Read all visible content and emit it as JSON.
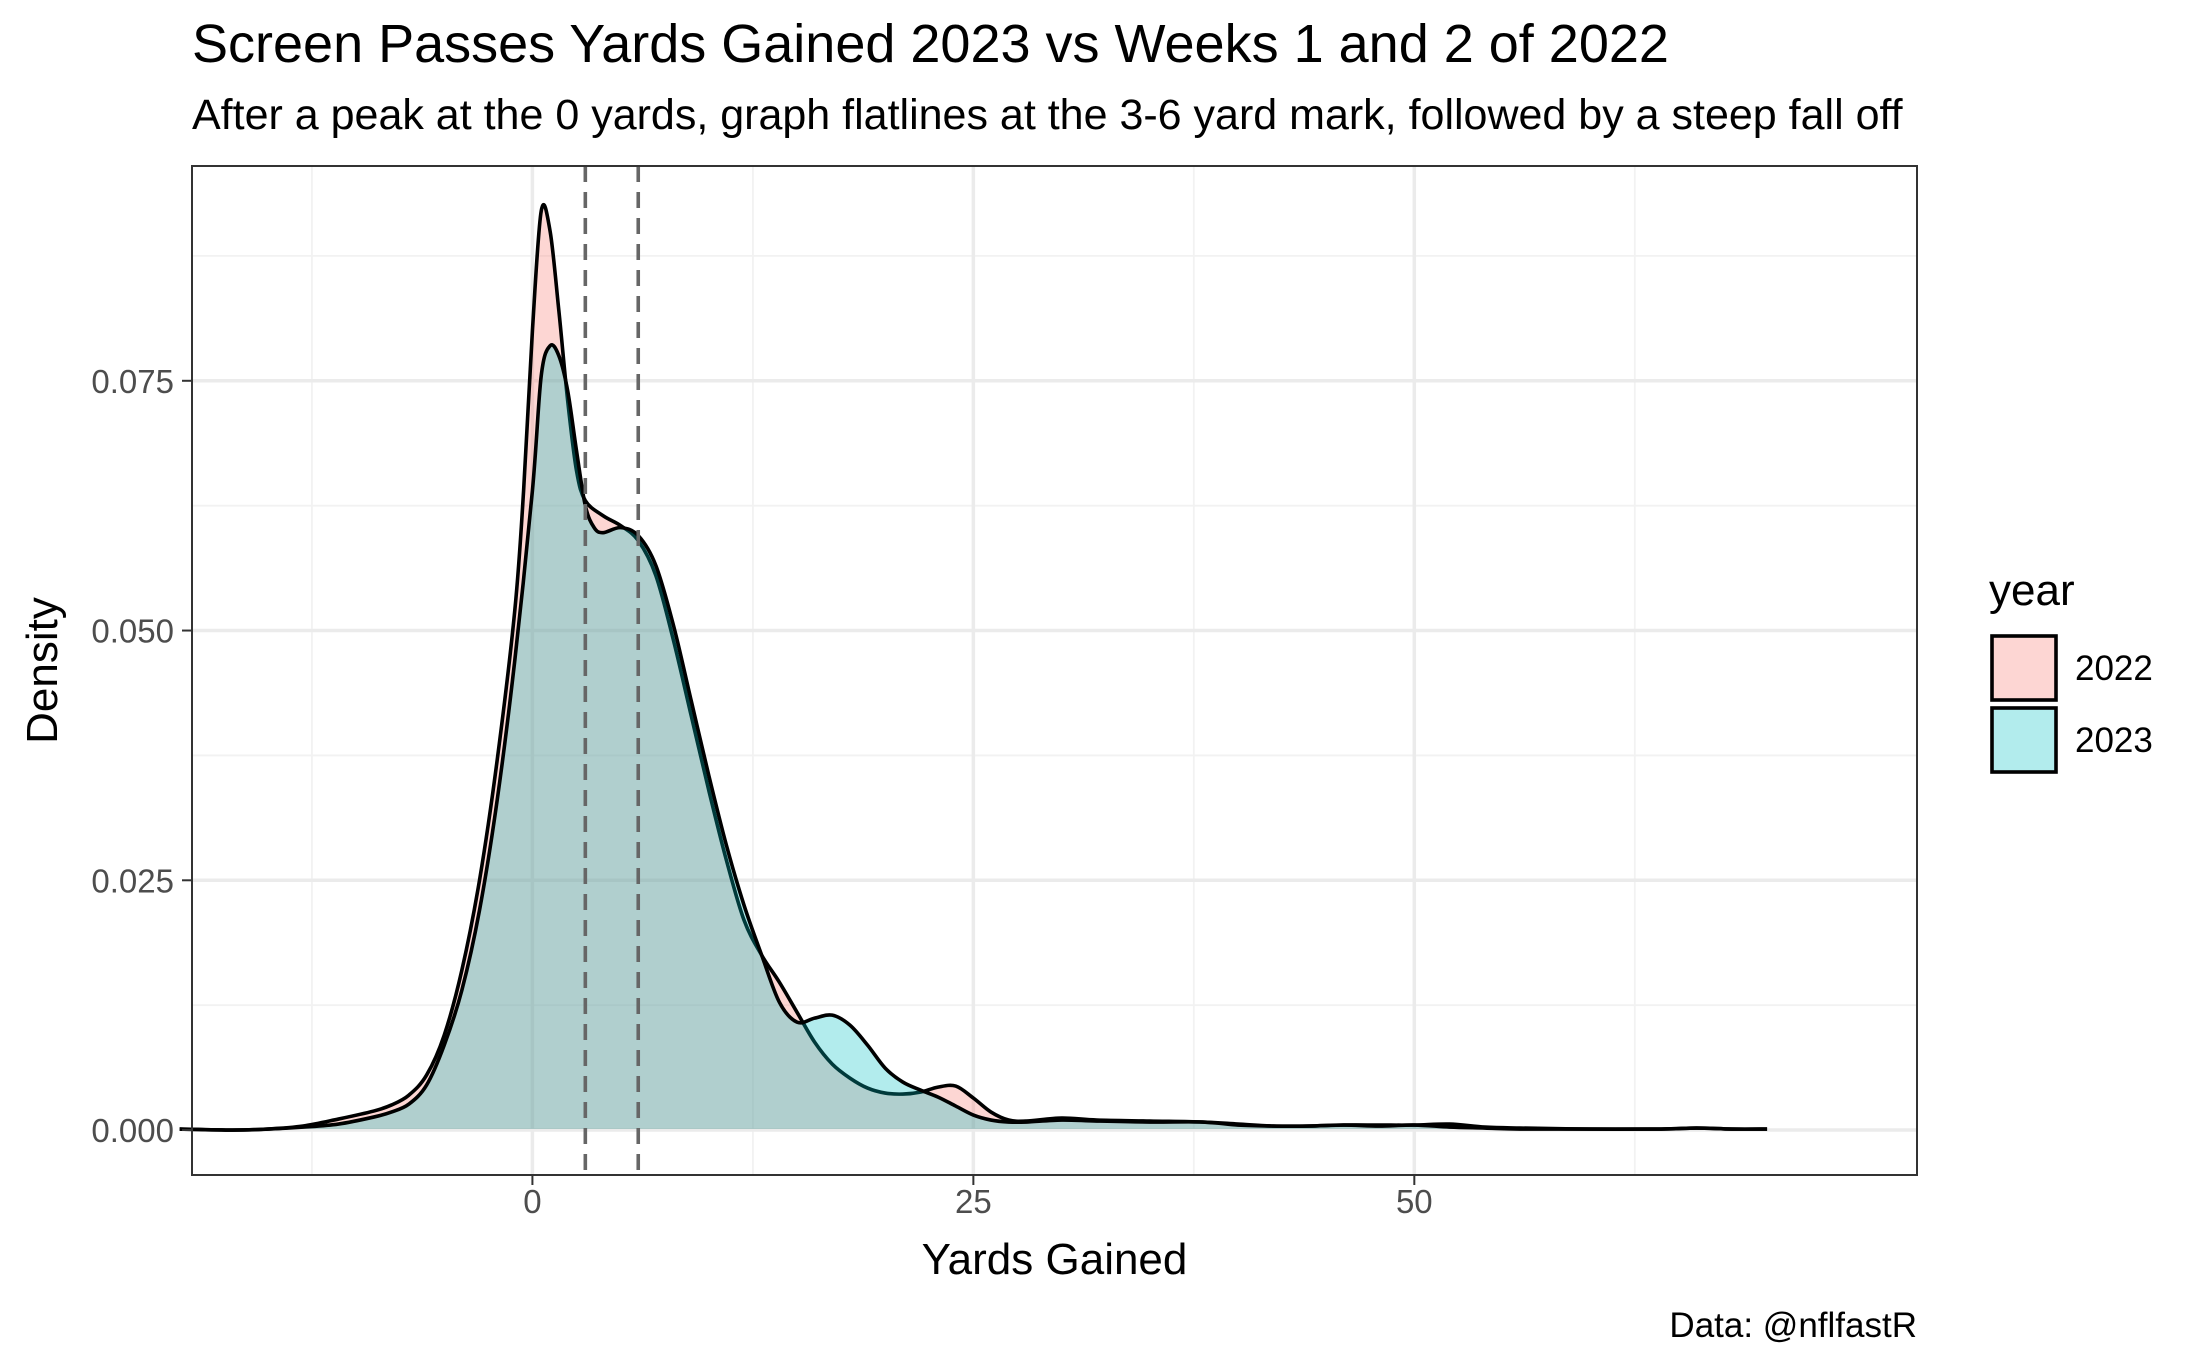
{
  "chart_data": {
    "type": "area",
    "title": "Screen Passes Yards Gained 2023 vs Weeks 1 and 2 of 2022",
    "subtitle": "After a peak at the 0 yards, graph flatlines at the 3-6 yard mark, followed by a steep fall off",
    "xlabel": "Yards Gained",
    "ylabel": "Density",
    "caption": "Data: @nflfastR",
    "xlim": [
      -19.3,
      78.5
    ],
    "ylim": [
      -0.0045,
      0.0965
    ],
    "x_ticks": [
      0,
      25,
      50
    ],
    "x_tick_labels": [
      "0",
      "25",
      "50"
    ],
    "x_minor": [
      -12.5,
      12.5,
      37.5,
      62.5
    ],
    "y_ticks": [
      0.0,
      0.025,
      0.05,
      0.075
    ],
    "y_tick_labels": [
      "0.000",
      "0.025",
      "0.050",
      "0.075"
    ],
    "y_minor": [
      0.0125,
      0.0375,
      0.0625,
      0.0875
    ],
    "grid": true,
    "legend": {
      "title": "year",
      "position": "right"
    },
    "reference_lines": {
      "type": "vertical dashed",
      "x": [
        3,
        6
      ]
    },
    "series": [
      {
        "name": "2022",
        "color": "#F8766D",
        "alpha": 0.3,
        "x": [
          -20,
          -17,
          -15,
          -13,
          -11,
          -9,
          -8,
          -7,
          -6,
          -5,
          -4,
          -3,
          -2,
          -1,
          -0.5,
          0,
          0.5,
          1,
          1.5,
          2,
          2.5,
          3,
          4,
          5,
          6,
          7,
          8,
          9,
          10,
          11,
          12,
          13,
          14,
          15,
          16,
          17,
          18,
          19,
          20,
          21,
          22,
          23,
          24,
          25,
          26,
          27,
          28,
          30,
          32,
          35,
          38,
          40,
          42,
          44,
          46,
          48,
          50,
          52,
          54,
          56,
          60,
          64,
          66,
          68,
          70
        ],
        "y": [
          0.0001,
          0.0,
          0.0001,
          0.0004,
          0.0011,
          0.0019,
          0.0025,
          0.0035,
          0.0055,
          0.0095,
          0.016,
          0.025,
          0.037,
          0.052,
          0.064,
          0.08,
          0.092,
          0.09,
          0.082,
          0.073,
          0.066,
          0.063,
          0.0615,
          0.0605,
          0.059,
          0.0555,
          0.049,
          0.0415,
          0.034,
          0.027,
          0.021,
          0.0175,
          0.0148,
          0.0118,
          0.0088,
          0.0066,
          0.0052,
          0.0042,
          0.0037,
          0.0036,
          0.0038,
          0.0043,
          0.0044,
          0.0032,
          0.0018,
          0.001,
          0.0009,
          0.0012,
          0.001,
          0.0009,
          0.0008,
          0.0006,
          0.0004,
          0.0004,
          0.0005,
          0.0005,
          0.0005,
          0.0006,
          0.0003,
          0.0002,
          0.0001,
          0.0001,
          0.0002,
          0.0001,
          0.0001
        ]
      },
      {
        "name": "2023",
        "color": "#00BFC4",
        "alpha": 0.3,
        "x": [
          -20,
          -17,
          -15,
          -13,
          -11,
          -9,
          -8,
          -7,
          -6,
          -5,
          -4,
          -3,
          -2,
          -1,
          0,
          0.5,
          1,
          1.5,
          2,
          2.5,
          3,
          3.5,
          4,
          5,
          6,
          7,
          8,
          9,
          10,
          11,
          12,
          13,
          14,
          15,
          16,
          17,
          18,
          19,
          20,
          21,
          22,
          23,
          24,
          25,
          26,
          27,
          28,
          30,
          32,
          35,
          38,
          40,
          42,
          44,
          46,
          48,
          50,
          52,
          54,
          56,
          60,
          64,
          66,
          68,
          70
        ],
        "y": [
          0.0001,
          0.0,
          0.0001,
          0.0003,
          0.0006,
          0.0013,
          0.0018,
          0.0026,
          0.0045,
          0.0085,
          0.014,
          0.022,
          0.033,
          0.047,
          0.064,
          0.0755,
          0.0785,
          0.0775,
          0.074,
          0.068,
          0.0625,
          0.0603,
          0.0598,
          0.0603,
          0.0595,
          0.0565,
          0.0505,
          0.043,
          0.0355,
          0.0285,
          0.0225,
          0.0175,
          0.0128,
          0.0108,
          0.0112,
          0.0115,
          0.0105,
          0.0085,
          0.0062,
          0.0048,
          0.004,
          0.0033,
          0.0024,
          0.0015,
          0.001,
          0.0008,
          0.0008,
          0.001,
          0.0009,
          0.0008,
          0.0008,
          0.0005,
          0.0004,
          0.0004,
          0.0005,
          0.0004,
          0.0005,
          0.0003,
          0.0002,
          0.0001,
          0.0001,
          0.0001,
          0.0002,
          0.0001,
          0.0001
        ]
      }
    ]
  }
}
